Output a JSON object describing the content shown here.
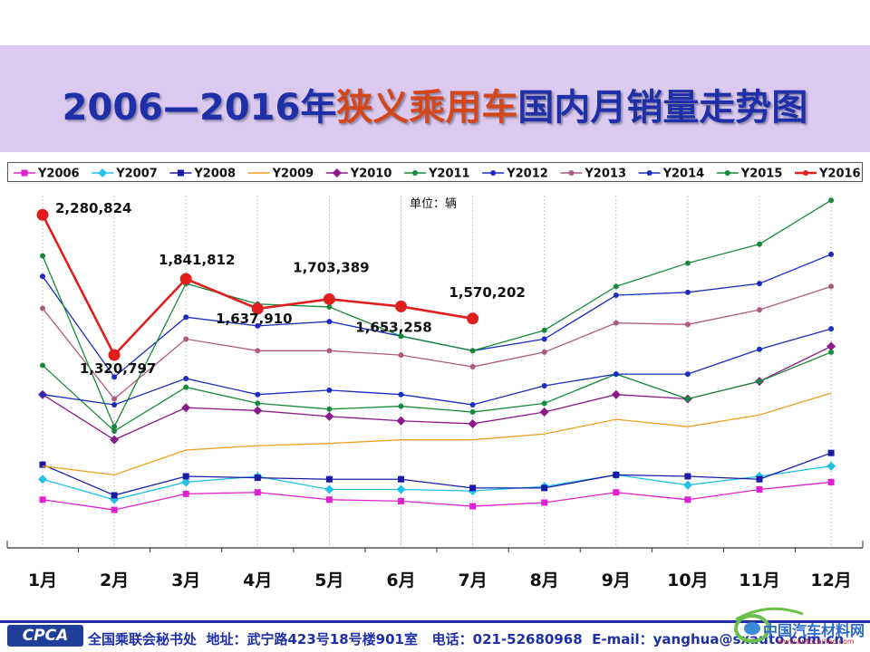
{
  "slide": {
    "title_parts": [
      "2006—2016年",
      "狭义乘用车",
      "国内月销量走势图"
    ]
  },
  "footer": {
    "logo": "CPCA",
    "org": "全国乘联会秘书处",
    "address": "地址：武宁路423号18号楼901室",
    "phone": "电话：021-52680968",
    "email": "E-mail：yanghua@sxauto.com.cn"
  },
  "watermark": {
    "text": "中国汽车材料网",
    "url": "www.autocailiao.com"
  },
  "chart_data": {
    "type": "line",
    "title": "2006—2016年狭义乘用车国内月销量走势图",
    "unit_label": "单位：辆",
    "xlabel": "",
    "ylabel": "",
    "categories": [
      "1月",
      "2月",
      "3月",
      "4月",
      "5月",
      "6月",
      "7月",
      "8月",
      "9月",
      "10月",
      "11月",
      "12月"
    ],
    "ylim": [
      0,
      2400000
    ],
    "grid": "vertical",
    "legend_position": "top",
    "series": [
      {
        "name": "Y2006",
        "color": "#e020d0",
        "marker": "square",
        "values": [
          330000,
          260000,
          370000,
          380000,
          330000,
          320000,
          285000,
          310000,
          380000,
          330000,
          400000,
          450000
        ]
      },
      {
        "name": "Y2007",
        "color": "#22c2e8",
        "marker": "diamond",
        "values": [
          470000,
          330000,
          450000,
          490000,
          400000,
          400000,
          390000,
          420000,
          500000,
          430000,
          490000,
          560000
        ]
      },
      {
        "name": "Y2008",
        "color": "#1a1aa8",
        "marker": "square",
        "values": [
          570000,
          360000,
          490000,
          480000,
          470000,
          470000,
          410000,
          410000,
          500000,
          490000,
          470000,
          650000
        ]
      },
      {
        "name": "Y2009",
        "color": "#f0a020",
        "marker": "none",
        "values": [
          560000,
          500000,
          670000,
          700000,
          715000,
          740000,
          740000,
          780000,
          880000,
          830000,
          910000,
          1060000
        ]
      },
      {
        "name": "Y2010",
        "color": "#8b1a8b",
        "marker": "diamond",
        "values": [
          1050000,
          740000,
          960000,
          940000,
          900000,
          870000,
          850000,
          930000,
          1050000,
          1020000,
          1140000,
          1380000
        ]
      },
      {
        "name": "Y2011",
        "color": "#178a3a",
        "marker": "circle",
        "values": [
          1250000,
          800000,
          1100000,
          990000,
          950000,
          970000,
          930000,
          990000,
          1190000,
          1020000,
          1140000,
          1340000
        ]
      },
      {
        "name": "Y2012",
        "color": "#1a2dc0",
        "marker": "circle",
        "values": [
          1050000,
          980000,
          1160000,
          1050000,
          1080000,
          1050000,
          980000,
          1110000,
          1190000,
          1190000,
          1360000,
          1500000
        ]
      },
      {
        "name": "Y2013",
        "color": "#b05a80",
        "marker": "circle",
        "values": [
          1640000,
          1020000,
          1430000,
          1350000,
          1350000,
          1320000,
          1240000,
          1340000,
          1540000,
          1530000,
          1630000,
          1790000
        ]
      },
      {
        "name": "Y2014",
        "color": "#1a2dc0",
        "marker": "circle",
        "values": [
          1860000,
          1170000,
          1580000,
          1520000,
          1550000,
          1450000,
          1350000,
          1430000,
          1730000,
          1750000,
          1810000,
          2010000
        ]
      },
      {
        "name": "Y2015",
        "color": "#178a3a",
        "marker": "circle",
        "values": [
          2000000,
          830000,
          1810000,
          1670000,
          1650000,
          1450000,
          1350000,
          1490000,
          1790000,
          1950000,
          2080000,
          2380000
        ]
      },
      {
        "name": "Y2016",
        "color": "#e01e1e",
        "marker": "circle-large",
        "values": [
          2280824,
          1320797,
          1841812,
          1637910,
          1703389,
          1653258,
          1570202,
          null,
          null,
          null,
          null,
          null
        ]
      }
    ],
    "annotations": [
      {
        "series": "Y2016",
        "category": "1月",
        "text": "2,280,824"
      },
      {
        "series": "Y2016",
        "category": "2月",
        "text": "1,320,797"
      },
      {
        "series": "Y2016",
        "category": "3月",
        "text": "1,841,812"
      },
      {
        "series": "Y2016",
        "category": "4月",
        "text": "1,637,910"
      },
      {
        "series": "Y2016",
        "category": "5月",
        "text": "1,703,389"
      },
      {
        "series": "Y2016",
        "category": "6月",
        "text": "1,653,258"
      },
      {
        "series": "Y2016",
        "category": "7月",
        "text": "1,570,202"
      }
    ]
  }
}
